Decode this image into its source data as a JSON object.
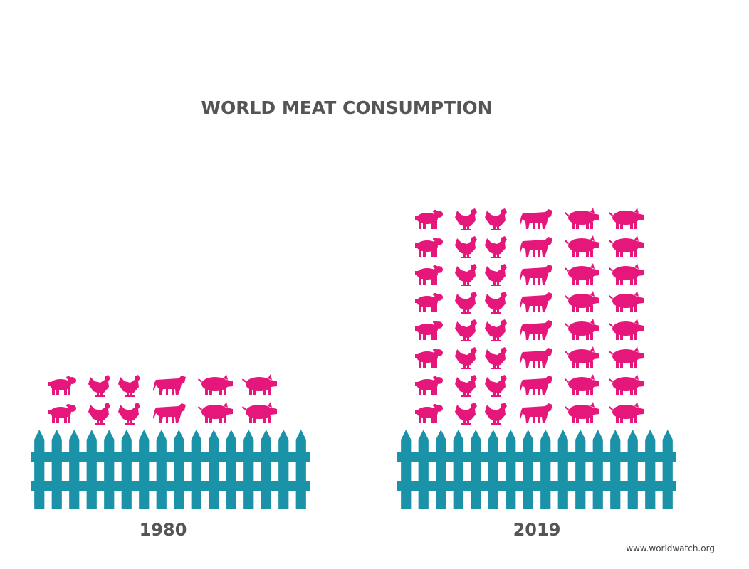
{
  "chart_data": {
    "type": "pictograph",
    "title": "WORLD MEAT CONSUMPTION",
    "categories": [
      "1980",
      "2019"
    ],
    "values": [
      2,
      8
    ],
    "color": "#e5177b",
    "source": "www.worldwatch.org"
  }
}
